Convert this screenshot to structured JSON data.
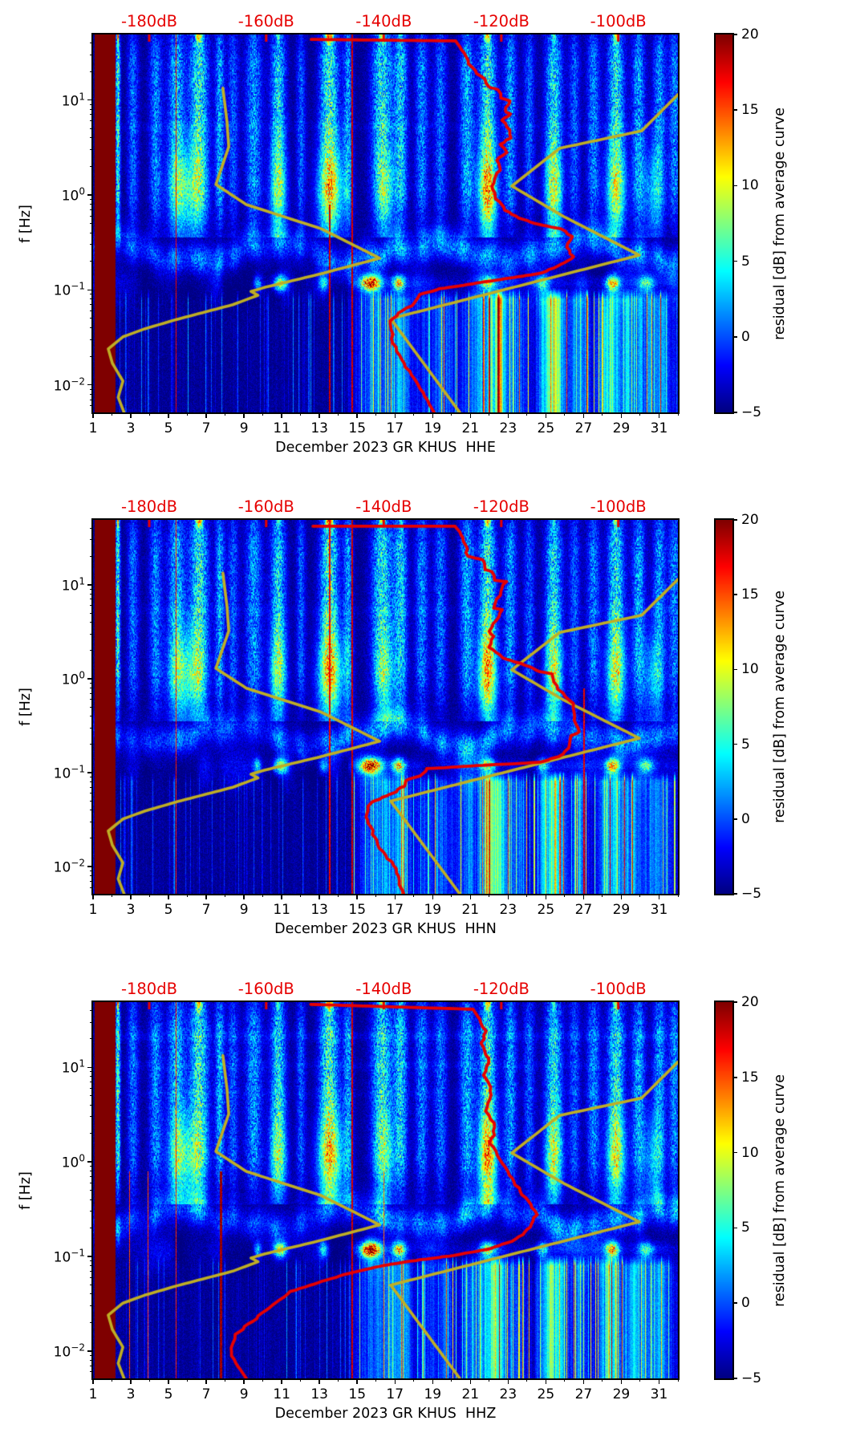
{
  "figure": {
    "background": "#ffffff"
  },
  "axes": {
    "ylabel": "f [Hz]",
    "x_tick_labels": [
      1,
      3,
      5,
      7,
      9,
      11,
      13,
      15,
      17,
      19,
      21,
      23,
      25,
      27,
      29,
      31
    ],
    "y_tick_exponents": [
      1,
      0,
      -1,
      -2
    ]
  },
  "colorbar": {
    "label": "residual [dB] from average curve",
    "ticks": [
      20,
      15,
      10,
      5,
      0,
      -5
    ],
    "vmin": -5,
    "vmax": 20,
    "colormap": "jet"
  },
  "top_axis": {
    "labels": [
      "-180dB",
      "-160dB",
      "-140dB",
      "-120dB",
      "-100dB"
    ],
    "positions_u": [
      0.096,
      0.296,
      0.497,
      0.698,
      0.898
    ],
    "color": "#e60000"
  },
  "panels": [
    {
      "channel": "HHE",
      "title": "December 2023 GR KHUS  HHE",
      "red_lines_full": [
        [
          5.4,
          16,
          1
        ],
        [
          14.7,
          17,
          2
        ]
      ],
      "red_lines_lower": [
        [
          13.5,
          17,
          2
        ]
      ],
      "horiz_lines": [
        [
          0.72,
          0.7
        ]
      ],
      "red_curve": [
        [
          0.373,
          0.013
        ],
        [
          0.62,
          0.017
        ],
        [
          0.63,
          0.04
        ],
        [
          0.647,
          0.087
        ],
        [
          0.668,
          0.119
        ],
        [
          0.675,
          0.138
        ],
        [
          0.694,
          0.146
        ],
        [
          0.698,
          0.168
        ],
        [
          0.711,
          0.176
        ],
        [
          0.704,
          0.202
        ],
        [
          0.713,
          0.21
        ],
        [
          0.7,
          0.227
        ],
        [
          0.711,
          0.253
        ],
        [
          0.713,
          0.274
        ],
        [
          0.698,
          0.291
        ],
        [
          0.707,
          0.312
        ],
        [
          0.69,
          0.333
        ],
        [
          0.695,
          0.359
        ],
        [
          0.686,
          0.384
        ],
        [
          0.683,
          0.41
        ],
        [
          0.689,
          0.435
        ],
        [
          0.705,
          0.465
        ],
        [
          0.73,
          0.486
        ],
        [
          0.763,
          0.503
        ],
        [
          0.801,
          0.514
        ],
        [
          0.818,
          0.535
        ],
        [
          0.809,
          0.563
        ],
        [
          0.822,
          0.588
        ],
        [
          0.801,
          0.609
        ],
        [
          0.768,
          0.631
        ],
        [
          0.719,
          0.643
        ],
        [
          0.664,
          0.656
        ],
        [
          0.593,
          0.673
        ],
        [
          0.558,
          0.688
        ],
        [
          0.551,
          0.711
        ],
        [
          0.524,
          0.737
        ],
        [
          0.509,
          0.758
        ],
        [
          0.513,
          0.817
        ],
        [
          0.527,
          0.86
        ],
        [
          0.55,
          0.911
        ],
        [
          0.567,
          0.957
        ],
        [
          0.583,
          1.0
        ]
      ]
    },
    {
      "channel": "HHN",
      "title": "December 2023 GR KHUS  HHN",
      "red_lines_full": [
        [
          5.4,
          15,
          1
        ],
        [
          13.5,
          16,
          2
        ],
        [
          14.7,
          17,
          2
        ]
      ],
      "red_lines_lower": [
        [
          27.0,
          16,
          2
        ]
      ],
      "horiz_lines": [
        [
          0.72,
          0.6
        ]
      ],
      "red_curve": [
        [
          0.376,
          0.017
        ],
        [
          0.619,
          0.017
        ],
        [
          0.627,
          0.032
        ],
        [
          0.632,
          0.047
        ],
        [
          0.637,
          0.069
        ],
        [
          0.639,
          0.097
        ],
        [
          0.668,
          0.107
        ],
        [
          0.671,
          0.133
        ],
        [
          0.682,
          0.139
        ],
        [
          0.687,
          0.161
        ],
        [
          0.705,
          0.165
        ],
        [
          0.698,
          0.191
        ],
        [
          0.691,
          0.212
        ],
        [
          0.687,
          0.236
        ],
        [
          0.701,
          0.24
        ],
        [
          0.689,
          0.268
        ],
        [
          0.678,
          0.298
        ],
        [
          0.685,
          0.311
        ],
        [
          0.678,
          0.341
        ],
        [
          0.689,
          0.354
        ],
        [
          0.701,
          0.369
        ],
        [
          0.732,
          0.384
        ],
        [
          0.764,
          0.406
        ],
        [
          0.785,
          0.412
        ],
        [
          0.791,
          0.444
        ],
        [
          0.819,
          0.491
        ],
        [
          0.824,
          0.536
        ],
        [
          0.831,
          0.567
        ],
        [
          0.819,
          0.577
        ],
        [
          0.815,
          0.599
        ],
        [
          0.808,
          0.62
        ],
        [
          0.797,
          0.633
        ],
        [
          0.764,
          0.648
        ],
        [
          0.723,
          0.652
        ],
        [
          0.682,
          0.655
        ],
        [
          0.636,
          0.659
        ],
        [
          0.599,
          0.663
        ],
        [
          0.572,
          0.665
        ],
        [
          0.558,
          0.685
        ],
        [
          0.534,
          0.697
        ],
        [
          0.531,
          0.712
        ],
        [
          0.517,
          0.727
        ],
        [
          0.502,
          0.738
        ],
        [
          0.476,
          0.755
        ],
        [
          0.468,
          0.777
        ],
        [
          0.469,
          0.803
        ],
        [
          0.476,
          0.82
        ],
        [
          0.479,
          0.841
        ],
        [
          0.486,
          0.856
        ],
        [
          0.49,
          0.878
        ],
        [
          0.503,
          0.906
        ],
        [
          0.513,
          0.916
        ],
        [
          0.517,
          0.933
        ],
        [
          0.523,
          0.955
        ],
        [
          0.524,
          0.976
        ],
        [
          0.531,
          0.998
        ]
      ]
    },
    {
      "channel": "HHZ",
      "title": "December 2023 GR KHUS  HHZ",
      "red_lines_full": [
        [
          5.4,
          15,
          1
        ],
        [
          14.7,
          17,
          2
        ]
      ],
      "red_lines_lower": [
        [
          2.9,
          14,
          1
        ],
        [
          3.9,
          14,
          1
        ],
        [
          7.7,
          18,
          3
        ],
        [
          16.4,
          13,
          1
        ]
      ],
      "horiz_lines": [
        [
          1.33,
          1.3
        ],
        [
          1.02,
          0.9
        ],
        [
          0.72,
          0.6
        ]
      ],
      "red_curve": [
        [
          0.372,
          0.006
        ],
        [
          0.65,
          0.019
        ],
        [
          0.66,
          0.045
        ],
        [
          0.671,
          0.077
        ],
        [
          0.665,
          0.109
        ],
        [
          0.676,
          0.15
        ],
        [
          0.669,
          0.194
        ],
        [
          0.681,
          0.236
        ],
        [
          0.673,
          0.29
        ],
        [
          0.688,
          0.332
        ],
        [
          0.68,
          0.375
        ],
        [
          0.695,
          0.418
        ],
        [
          0.711,
          0.46
        ],
        [
          0.731,
          0.503
        ],
        [
          0.752,
          0.546
        ],
        [
          0.758,
          0.565
        ],
        [
          0.75,
          0.59
        ],
        [
          0.74,
          0.612
        ],
        [
          0.716,
          0.636
        ],
        [
          0.678,
          0.655
        ],
        [
          0.623,
          0.672
        ],
        [
          0.568,
          0.683
        ],
        [
          0.495,
          0.7
        ],
        [
          0.444,
          0.718
        ],
        [
          0.39,
          0.742
        ],
        [
          0.339,
          0.769
        ],
        [
          0.284,
          0.834
        ],
        [
          0.243,
          0.883
        ],
        [
          0.235,
          0.919
        ],
        [
          0.236,
          0.94
        ],
        [
          0.248,
          0.968
        ],
        [
          0.262,
          1.0
        ]
      ]
    }
  ],
  "overlays": {
    "red_color": "#e60000",
    "olive_color": "#bfae25",
    "olive_a": [
      [
        0.222,
        0.142
      ],
      [
        0.229,
        0.231
      ],
      [
        0.232,
        0.297
      ],
      [
        0.21,
        0.397
      ],
      [
        0.262,
        0.45
      ],
      [
        0.39,
        0.514
      ],
      [
        0.49,
        0.592
      ],
      [
        0.385,
        0.635
      ],
      [
        0.294,
        0.669
      ],
      [
        0.27,
        0.68
      ],
      [
        0.282,
        0.69
      ],
      [
        0.239,
        0.715
      ],
      [
        0.143,
        0.754
      ],
      [
        0.088,
        0.779
      ],
      [
        0.051,
        0.8
      ],
      [
        0.026,
        0.832
      ],
      [
        0.033,
        0.87
      ],
      [
        0.051,
        0.917
      ],
      [
        0.043,
        0.96
      ],
      [
        0.053,
        1.0
      ]
    ],
    "olive_b": [
      [
        1.0,
        0.159
      ],
      [
        0.938,
        0.255
      ],
      [
        0.798,
        0.301
      ],
      [
        0.716,
        0.401
      ],
      [
        0.805,
        0.482
      ],
      [
        0.934,
        0.584
      ],
      [
        0.509,
        0.752
      ],
      [
        0.627,
        1.0
      ]
    ]
  },
  "chart_data": {
    "type": "heatmap",
    "title": "PPSD spectrogram residuals, station GR KHUS, December 2023, channels HHE/HHN/HHZ",
    "xlabel_per_panel": [
      "December 2023 GR KHUS  HHE",
      "December 2023 GR KHUS  HHN",
      "December 2023 GR KHUS  HHZ"
    ],
    "ylabel": "f [Hz]",
    "x_range_days": [
      1,
      32
    ],
    "y_range_hz": [
      0.005,
      49
    ],
    "y_scale": "log",
    "value_label": "residual [dB] from average curve",
    "value_range": [
      -5,
      20
    ],
    "colormap": "jet",
    "top_axis_db_ticks": [
      -180,
      -160,
      -140,
      -120,
      -100
    ],
    "masked_band_days": [
      1.09,
      2.15
    ],
    "storm_columns_day_width_amp": [
      [
        2.3,
        0.13,
        0.95
      ],
      [
        3.1,
        0.3,
        0.5
      ],
      [
        4.3,
        0.35,
        0.55
      ],
      [
        5.4,
        0.45,
        0.7
      ],
      [
        6.6,
        0.5,
        0.9
      ],
      [
        7.7,
        0.25,
        0.65
      ],
      [
        8.4,
        0.3,
        0.45
      ],
      [
        9.5,
        0.45,
        0.6
      ],
      [
        10.8,
        0.4,
        0.8
      ],
      [
        12.0,
        0.25,
        0.45
      ],
      [
        13.5,
        0.5,
        0.95
      ],
      [
        14.5,
        0.25,
        0.6
      ],
      [
        16.3,
        0.55,
        0.85
      ],
      [
        17.3,
        0.35,
        0.75
      ],
      [
        18.4,
        0.35,
        0.55
      ],
      [
        19.4,
        0.35,
        0.5
      ],
      [
        20.8,
        0.4,
        0.65
      ],
      [
        21.9,
        0.45,
        0.9
      ],
      [
        23.1,
        0.35,
        0.6
      ],
      [
        24.1,
        0.3,
        0.45
      ],
      [
        25.4,
        0.45,
        0.8
      ],
      [
        26.5,
        0.3,
        0.45
      ],
      [
        27.5,
        0.35,
        0.55
      ],
      [
        28.7,
        0.45,
        0.85
      ],
      [
        29.9,
        0.35,
        0.65
      ],
      [
        31.0,
        0.35,
        0.6
      ],
      [
        31.8,
        0.3,
        0.55
      ]
    ],
    "onehz_blobs_day_width_amp": [
      [
        5.9,
        0.9,
        8
      ],
      [
        10.8,
        0.5,
        6
      ],
      [
        13.6,
        0.8,
        8.5
      ],
      [
        16.5,
        0.5,
        5
      ],
      [
        21.9,
        0.55,
        10
      ],
      [
        25.4,
        0.5,
        7
      ],
      [
        28.7,
        0.6,
        7
      ],
      [
        30.6,
        0.5,
        6
      ]
    ],
    "microseism_hotspots_day_width_amp": [
      [
        9.7,
        0.2,
        8
      ],
      [
        10.9,
        0.35,
        14
      ],
      [
        13.2,
        0.25,
        8
      ],
      [
        15.7,
        0.55,
        22
      ],
      [
        17.2,
        0.35,
        16
      ],
      [
        21.9,
        0.4,
        12
      ],
      [
        24.8,
        0.3,
        8
      ],
      [
        28.5,
        0.35,
        16
      ],
      [
        30.3,
        0.4,
        9
      ]
    ],
    "lowfreq_columns_day_width_amp": [
      [
        16.0,
        1.0,
        7
      ],
      [
        17.3,
        0.6,
        8
      ],
      [
        18.6,
        0.5,
        5
      ],
      [
        19.6,
        0.6,
        6
      ],
      [
        20.9,
        0.5,
        6
      ],
      [
        22.25,
        0.75,
        16
      ],
      [
        23.6,
        0.4,
        7
      ],
      [
        25.35,
        0.7,
        15
      ],
      [
        26.8,
        0.5,
        7
      ],
      [
        28.4,
        0.7,
        12
      ],
      [
        29.6,
        0.5,
        8
      ],
      [
        30.9,
        0.9,
        8
      ]
    ]
  }
}
